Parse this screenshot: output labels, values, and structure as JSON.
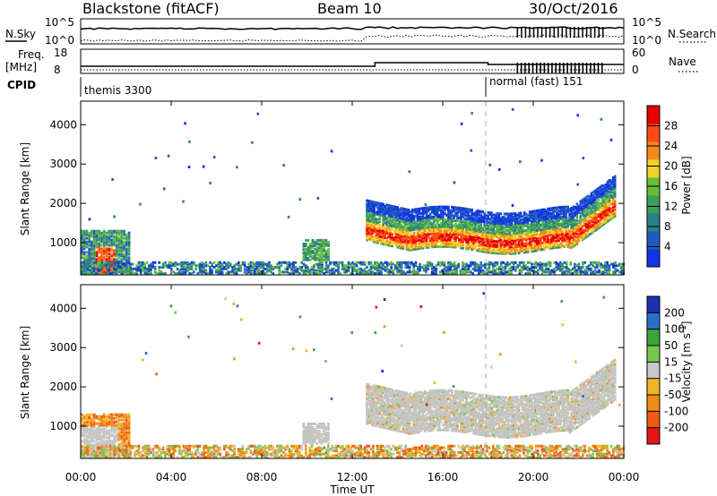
{
  "header": {
    "station": "Blackstone (fitACF)",
    "beam": "Beam 10",
    "date": "30/Oct/2016"
  },
  "summary_panels": {
    "nsky_label": "N.Sky",
    "nsky_ticks": [
      "10^5",
      "10^0"
    ],
    "nsearch_label": "N.Search",
    "nsearch_ticks": [
      "10^5",
      "10^0"
    ],
    "freq_label": [
      "Freq.",
      "[MHz]"
    ],
    "freq_ticks": [
      "18",
      "8"
    ],
    "nave_label": "Nave",
    "nave_ticks": [
      "60",
      "0"
    ],
    "cpid_label": "CPID",
    "cpid_segments": [
      {
        "label": "themis 3300",
        "start_hour": 0,
        "end_hour": 18
      },
      {
        "label": "normal (fast) 151",
        "start_hour": 18,
        "end_hour": 24
      }
    ]
  },
  "axis": {
    "xlabel": "Time UT",
    "ylabel": "Slant Range [km]",
    "x_ticks": [
      "00:00",
      "04:00",
      "08:00",
      "12:00",
      "16:00",
      "20:00",
      "00:00"
    ],
    "y_ticks": [
      "1000",
      "2000",
      "3000",
      "4000"
    ]
  },
  "colors": {
    "power_scale": [
      "#1432e6",
      "#1f5cbf",
      "#2e7f88",
      "#3d9f5a",
      "#66be3a",
      "#f2d22a",
      "#f28a1a",
      "#ff4a14",
      "#e60000"
    ],
    "velocity_scale": [
      "#1e2fb4",
      "#2a70c8",
      "#3aa53a",
      "#78c850",
      "#c8c8c8",
      "#f0b428",
      "#f08c14",
      "#f05a14",
      "#e61414"
    ],
    "gray_band": "#c4c4c0"
  },
  "chart_data": [
    {
      "type": "heatmap",
      "name": "Power",
      "xlabel": "Time UT",
      "ylabel": "Slant Range [km]",
      "xlim": [
        0,
        24
      ],
      "ylim": [
        180,
        4600
      ],
      "colorbar_label": "Power [dB]",
      "colorbar_ticks": [
        "4",
        "8",
        "12",
        "16",
        "20",
        "24",
        "28"
      ],
      "features": [
        {
          "region": "E/near-range echoes",
          "hours": [
            0.0,
            2.0
          ],
          "range_km": [
            200,
            1300
          ],
          "peak_dB": 28
        },
        {
          "region": "mid-range patch",
          "hours": [
            9.8,
            10.8
          ],
          "range_km": [
            500,
            1050
          ],
          "peak_dB": 12
        },
        {
          "region": "evening band",
          "hours": [
            12.6,
            23.5
          ],
          "range_km": [
            900,
            2100
          ],
          "peak_dB": 28
        }
      ]
    },
    {
      "type": "heatmap",
      "name": "Velocity",
      "xlabel": "Time UT",
      "ylabel": "Slant Range [km]",
      "xlim": [
        0,
        24
      ],
      "ylim": [
        180,
        4600
      ],
      "colorbar_label": "Velocity [m s",
      "colorbar_sup": "-1",
      "colorbar_ticks": [
        "200",
        "100",
        "50",
        "15",
        "-15",
        "-50",
        "-100",
        "-200"
      ],
      "features": [
        {
          "region": "early echoes",
          "hours": [
            0.0,
            2.0
          ],
          "range_km": [
            200,
            1300
          ],
          "velocity_m_s": -50
        },
        {
          "region": "evening band",
          "hours": [
            12.6,
            23.5
          ],
          "range_km": [
            900,
            2100
          ],
          "velocity_m_s": 0
        }
      ]
    }
  ]
}
